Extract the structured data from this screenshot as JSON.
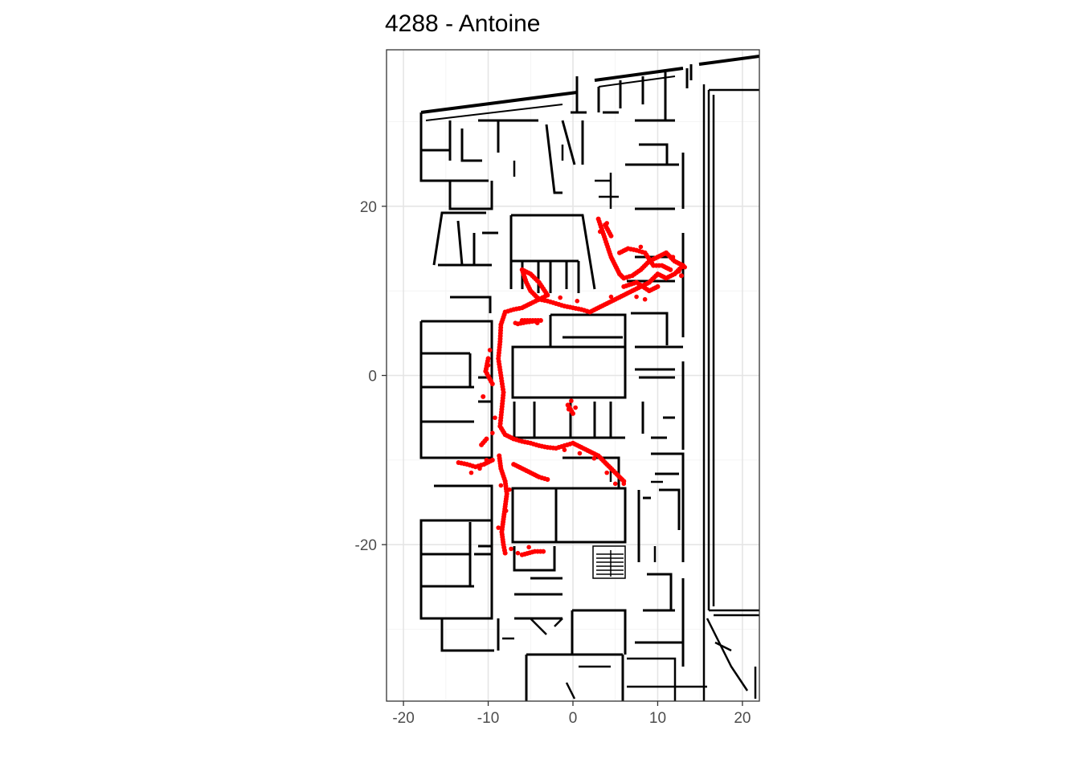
{
  "chart_data": {
    "type": "scatter",
    "title": "4288 - Antoine",
    "xlabel": "",
    "ylabel": "",
    "xlim": [
      -22,
      22
    ],
    "ylim": [
      -38.5,
      38.5
    ],
    "x_ticks": [
      -20,
      -10,
      0,
      10,
      20
    ],
    "x_tick_labels": [
      "-20",
      "-10",
      "0",
      "10",
      "20"
    ],
    "y_ticks": [
      -20,
      0,
      20
    ],
    "y_tick_labels": [
      "-20",
      "0",
      "20"
    ],
    "grid": true,
    "legend": "none",
    "point_color": "#ff0000",
    "wall_color": "#000000",
    "background": "floor-plan",
    "series": [
      {
        "trajectory": [
          [
            3.0,
            18.5
          ],
          [
            3.5,
            17
          ],
          [
            4,
            15.5
          ],
          [
            4.5,
            14
          ],
          [
            5,
            13
          ],
          [
            5.5,
            12
          ],
          [
            6,
            11.5
          ],
          [
            7,
            11.8
          ],
          [
            8,
            12.5
          ],
          [
            9,
            13.5
          ],
          [
            10,
            14
          ],
          [
            11,
            14.5
          ],
          [
            12,
            13.5
          ],
          [
            13,
            13
          ],
          [
            12,
            12
          ],
          [
            11,
            11.5
          ],
          [
            10,
            12
          ],
          [
            9,
            11
          ],
          [
            8,
            10.5
          ],
          [
            7,
            10
          ],
          [
            6,
            9.5
          ],
          [
            5,
            9
          ],
          [
            4,
            8.5
          ],
          [
            3,
            8
          ],
          [
            2,
            7.5
          ],
          [
            1,
            7.8
          ],
          [
            0,
            8
          ],
          [
            -1,
            8.2
          ],
          [
            -2,
            8.5
          ],
          [
            -3,
            8.8
          ],
          [
            -4,
            9
          ],
          [
            -5,
            10
          ],
          [
            -5.5,
            11
          ],
          [
            -6,
            12.5
          ],
          [
            -5,
            12
          ],
          [
            -4,
            11
          ],
          [
            -3,
            9.5
          ],
          [
            -5,
            8.5
          ],
          [
            -6,
            8
          ],
          [
            -7,
            7.8
          ],
          [
            -8,
            7.5
          ],
          [
            -8.5,
            6
          ],
          [
            -8.6,
            4
          ],
          [
            -8.8,
            2
          ],
          [
            -8.5,
            0
          ],
          [
            -8.2,
            -2
          ],
          [
            -8.4,
            -4
          ],
          [
            -8.6,
            -6
          ],
          [
            -8,
            -7
          ],
          [
            -7,
            -7.5
          ],
          [
            -6,
            -7.8
          ],
          [
            -5,
            -8
          ],
          [
            -4,
            -8.3
          ],
          [
            -3,
            -8.5
          ],
          [
            -2,
            -8.6
          ],
          [
            -1,
            -8.3
          ],
          [
            0,
            -8
          ],
          [
            1,
            -8.5
          ],
          [
            2,
            -9
          ],
          [
            3,
            -9.5
          ],
          [
            4,
            -10.5
          ],
          [
            5,
            -11.5
          ],
          [
            6,
            -12.5
          ],
          [
            -8.7,
            -9.5
          ],
          [
            -8.5,
            -11
          ],
          [
            -8,
            -12.5
          ],
          [
            -7.8,
            -14
          ],
          [
            -8,
            -15.5
          ],
          [
            -8.2,
            -17
          ],
          [
            -8.4,
            -18.5
          ],
          [
            -8.2,
            -20
          ],
          [
            -8,
            -21
          ],
          [
            -9.5,
            -10
          ],
          [
            -10.5,
            -10.5
          ],
          [
            -11.5,
            -10.8
          ],
          [
            -12.5,
            -10.5
          ],
          [
            -13.5,
            -10.3
          ],
          [
            -7,
            -10.5
          ],
          [
            -6,
            -11
          ],
          [
            -5,
            -11.5
          ],
          [
            -4,
            -12
          ],
          [
            -3,
            -12.3
          ],
          [
            -6,
            -21.2
          ],
          [
            -4.5,
            -20.8
          ],
          [
            -3.5,
            -20.8
          ],
          [
            -9.5,
            -1
          ],
          [
            -10.3,
            0.5
          ],
          [
            -10,
            2
          ],
          [
            -10.6,
            -2.5
          ],
          [
            -10.2,
            -7.5
          ],
          [
            -10.8,
            -8.2
          ],
          [
            -0.6,
            -3.5
          ],
          [
            0,
            -4.5
          ],
          [
            -6.5,
            6.1
          ],
          [
            -5.5,
            6.3
          ],
          [
            -3.8,
            6.5
          ],
          [
            -6,
            6.5
          ],
          [
            5.5,
            14.5
          ],
          [
            6.5,
            15
          ],
          [
            7.5,
            14.8
          ],
          [
            8.5,
            14.5
          ],
          [
            9.5,
            13
          ],
          [
            10.5,
            13
          ],
          [
            11.5,
            12.5
          ],
          [
            6,
            10.5
          ],
          [
            7.5,
            11
          ],
          [
            9,
            10
          ],
          [
            10,
            10.5
          ],
          [
            4.5,
            16.5
          ],
          [
            3.8,
            17.8
          ],
          [
            12.8,
            11.8
          ]
        ],
        "scatter_dots": [
          [
            -9.8,
            3
          ],
          [
            -10,
            1.2
          ],
          [
            -9.2,
            -5
          ],
          [
            -9.5,
            -6.8
          ],
          [
            -10.2,
            -10
          ],
          [
            -12,
            -11.5
          ],
          [
            -11,
            -11
          ],
          [
            -8.5,
            -13
          ],
          [
            -7.5,
            -13.5
          ],
          [
            -7.9,
            -16
          ],
          [
            -8.8,
            -18
          ],
          [
            -7.3,
            -20.5
          ],
          [
            -6.5,
            -21
          ],
          [
            -5.2,
            -20.3
          ],
          [
            -1,
            -8.8
          ],
          [
            0.8,
            -9.2
          ],
          [
            2.5,
            -9.8
          ],
          [
            4,
            -11.5
          ],
          [
            5,
            -12.8
          ],
          [
            6,
            -12.8
          ],
          [
            -6.8,
            6.2
          ],
          [
            -4.2,
            6.2
          ],
          [
            -3.5,
            9.2
          ],
          [
            -4.5,
            9.5
          ],
          [
            -0.5,
            -4
          ],
          [
            0.3,
            -3.8
          ],
          [
            -0.2,
            -3
          ],
          [
            12.5,
            12.3
          ],
          [
            13.2,
            12.8
          ],
          [
            11.8,
            14
          ],
          [
            8,
            15.2
          ],
          [
            7.5,
            9.3
          ],
          [
            8.5,
            9
          ],
          [
            4.5,
            9.3
          ],
          [
            3.2,
            17
          ],
          [
            4,
            18
          ],
          [
            -1.5,
            9.2
          ],
          [
            0.5,
            8.8
          ]
        ]
      }
    ]
  }
}
